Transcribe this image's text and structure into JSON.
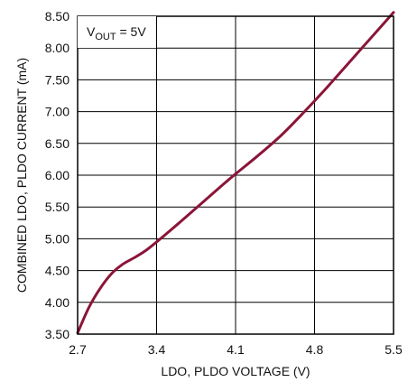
{
  "chart_data": {
    "type": "line",
    "title": "",
    "xlabel": "LDO, PLDO VOLTAGE (V)",
    "ylabel": "COMBINED LDO, PLDO CURRENT (mA)",
    "xlim": [
      2.7,
      5.5
    ],
    "ylim": [
      3.5,
      8.5
    ],
    "x_ticks": [
      "2.7",
      "3.4",
      "4.1",
      "4.8",
      "5.5"
    ],
    "y_ticks": [
      "3.50",
      "4.00",
      "4.50",
      "5.00",
      "5.50",
      "6.00",
      "6.50",
      "7.00",
      "7.50",
      "8.00",
      "8.50"
    ],
    "grid": true,
    "annotation": {
      "main": "V",
      "sub": "OUT",
      "suffix": " = 5V"
    },
    "colors": {
      "line": "#8B1538",
      "grid": "#000000"
    },
    "series": [
      {
        "x": [
          2.7,
          2.8,
          2.9,
          3.0,
          3.1,
          3.2,
          3.3,
          3.4,
          3.6,
          3.8,
          4.0,
          4.1,
          4.3,
          4.5,
          4.7,
          4.9,
          5.1,
          5.3,
          5.5
        ],
        "y": [
          3.52,
          3.92,
          4.22,
          4.45,
          4.6,
          4.7,
          4.81,
          4.95,
          5.25,
          5.56,
          5.87,
          6.02,
          6.31,
          6.62,
          6.98,
          7.36,
          7.76,
          8.16,
          8.56
        ]
      }
    ]
  }
}
